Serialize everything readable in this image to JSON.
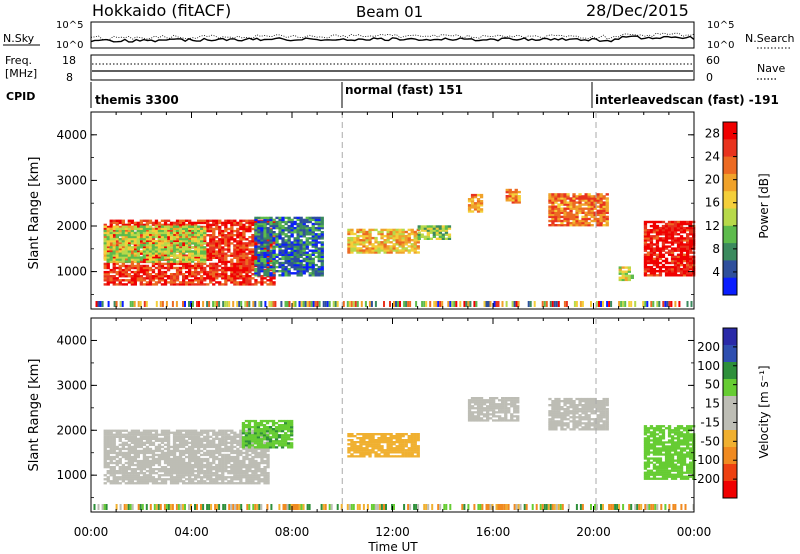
{
  "header": {
    "station": "Hokkaido (fitACF)",
    "beam": "Beam 01",
    "date": "28/Dec/2015"
  },
  "noise_panel": {
    "left_label": "N.Sky",
    "right_label": "N.Search",
    "left_ticks": [
      "10^5",
      "10^0"
    ],
    "right_ticks": [
      "10^5",
      "10^0"
    ]
  },
  "freq_panel": {
    "left_label_1": "Freq.",
    "left_label_2": "[MHz]",
    "right_label": "Nave",
    "left_ticks": [
      "18",
      "8"
    ],
    "right_ticks": [
      "60",
      "0"
    ]
  },
  "cpid_panel": {
    "label": "CPID",
    "programs": [
      {
        "name": "themis 3300",
        "start_hour": 0
      },
      {
        "name": "normal (fast) 151",
        "start_hour": 10
      },
      {
        "name": "interleavedscan (fast) -191",
        "start_hour": 20.1
      }
    ]
  },
  "colors": {
    "power_scale": [
      "#0a1eff",
      "#2e4f9c",
      "#3b8a5e",
      "#5dbb4c",
      "#b7d94a",
      "#f4cf3a",
      "#f0a22a",
      "#ec6a22",
      "#e8331e",
      "#f00000"
    ],
    "velocity_scale": [
      "#2a2aa8",
      "#2f4fb0",
      "#2e8f3a",
      "#66cc33",
      "#bdbdb5",
      "#bdbdb5",
      "#f0b030",
      "#f08a20",
      "#ee4010",
      "#f00000"
    ]
  },
  "chart_data": [
    {
      "type": "heatmap",
      "title": "Power",
      "xlabel": "Time UT",
      "ylabel": "Slant Range [km]",
      "xlim_hours": [
        0,
        24
      ],
      "x_tick_labels": [
        "00:00",
        "04:00",
        "08:00",
        "12:00",
        "16:00",
        "20:00",
        "00:00"
      ],
      "ylim_km": [
        180,
        4500
      ],
      "y_tick_labels": [
        "1000",
        "2000",
        "3000",
        "4000"
      ],
      "colorbar_label": "Power [dB]",
      "colorbar_ticks": [
        "4",
        "8",
        "12",
        "16",
        "20",
        "24",
        "28"
      ],
      "colorbar_range": [
        0,
        30
      ],
      "regions": [
        {
          "t0": 0.5,
          "t1": 7.3,
          "r0": 700,
          "r1": 2100,
          "value": 26
        },
        {
          "t0": 0.5,
          "t1": 4.5,
          "r0": 1200,
          "r1": 2000,
          "value": 14
        },
        {
          "t0": 6.5,
          "t1": 9.2,
          "r0": 900,
          "r1": 2200,
          "value": 6
        },
        {
          "t0": 10.2,
          "t1": 13.0,
          "r0": 1400,
          "r1": 1900,
          "value": 18
        },
        {
          "t0": 13.0,
          "t1": 14.3,
          "r0": 1700,
          "r1": 2000,
          "value": 12
        },
        {
          "t0": 15.0,
          "t1": 15.5,
          "r0": 2300,
          "r1": 2700,
          "value": 20
        },
        {
          "t0": 16.5,
          "t1": 17.0,
          "r0": 2500,
          "r1": 2800,
          "value": 20
        },
        {
          "t0": 18.2,
          "t1": 20.6,
          "r0": 2000,
          "r1": 2700,
          "value": 22
        },
        {
          "t0": 21.0,
          "t1": 21.5,
          "r0": 800,
          "r1": 1100,
          "value": 14
        },
        {
          "t0": 22.0,
          "t1": 24.0,
          "r0": 900,
          "r1": 2100,
          "value": 28
        }
      ]
    },
    {
      "type": "heatmap",
      "title": "Velocity",
      "xlabel": "Time UT",
      "ylabel": "Slant Range [km]",
      "xlim_hours": [
        0,
        24
      ],
      "x_tick_labels": [
        "00:00",
        "04:00",
        "08:00",
        "12:00",
        "16:00",
        "20:00",
        "00:00"
      ],
      "ylim_km": [
        180,
        4500
      ],
      "y_tick_labels": [
        "1000",
        "2000",
        "3000",
        "4000"
      ],
      "colorbar_label": "Velocity [m s⁻¹]",
      "colorbar_ticks": [
        "200",
        "100",
        "50",
        "15",
        "-15",
        "-50",
        "-100",
        "-200"
      ],
      "regions": [
        {
          "t0": 0.5,
          "t1": 7.0,
          "r0": 800,
          "r1": 2000,
          "value": 0
        },
        {
          "t0": 6.0,
          "t1": 8.0,
          "r0": 1600,
          "r1": 2200,
          "value": 40
        },
        {
          "t0": 10.2,
          "t1": 13.0,
          "r0": 1400,
          "r1": 1900,
          "value": -30
        },
        {
          "t0": 15.0,
          "t1": 17.0,
          "r0": 2200,
          "r1": 2700,
          "value": 0
        },
        {
          "t0": 18.2,
          "t1": 20.6,
          "r0": 2000,
          "r1": 2700,
          "value": 0
        },
        {
          "t0": 22.0,
          "t1": 24.0,
          "r0": 900,
          "r1": 2100,
          "value": 30
        }
      ]
    }
  ]
}
